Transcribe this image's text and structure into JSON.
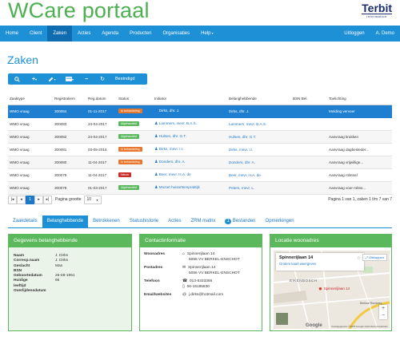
{
  "app": {
    "title": "WCare portaal",
    "brand_main": "Terbit",
    "brand_sub": "information"
  },
  "nav": {
    "items": [
      "Home",
      "Client",
      "Zaken",
      "Acties",
      "Agenda",
      "Producten",
      "Organisaties",
      "Help"
    ],
    "right": [
      "Uitloggen",
      "A. Demo"
    ]
  },
  "page": {
    "title": "Zaken"
  },
  "toolbar": {
    "reset_label": "Beeindigd"
  },
  "table": {
    "headers": [
      "Zaaktype",
      "Registratiem",
      "Reg.datum",
      "Status",
      "Initiator",
      "Belanghebbende",
      "BSN Bel.",
      "Toelichting"
    ],
    "rows": [
      {
        "type": "WMO vraag",
        "reg": "300084",
        "date": "01-11-2017",
        "status": "In behandeling",
        "status_color": "#e8772e",
        "initiator": "Dirks, dhr. J.",
        "ben": "Dirks, dhr. J.",
        "bsn": "",
        "toel": "Melding vervoer"
      },
      {
        "type": "WMO vraag",
        "reg": "300083",
        "date": "24-04-2017",
        "status": "Afgehandeld",
        "status_color": "#5cb85c",
        "initiator": "Lammers, mevr. B.A.S.",
        "ben": "Lammers, mevr. B.A.S.",
        "bsn": "",
        "toel": ""
      },
      {
        "type": "WMO vraag",
        "reg": "300082",
        "date": "24-04-2017",
        "status": "Afgehandeld",
        "status_color": "#5cb85c",
        "initiator": "Hulsen, dhr. G.T.",
        "ben": "Hulsen, dhr. G.T.",
        "bsn": "",
        "toel": "Aanvraag krukken"
      },
      {
        "type": "WMO vraag",
        "reg": "300081",
        "date": "03-05-2016",
        "status": "In behandeling",
        "status_color": "#e8772e",
        "initiator": "Dirks, mevr. I.I.",
        "ben": "Dirks, mevr. I.I.",
        "bsn": "",
        "toel": "Aanvraag dagbesteder..."
      },
      {
        "type": "WMO vraag",
        "reg": "300080",
        "date": "11-04-2017",
        "status": "In behandeling",
        "status_color": "#e8772e",
        "initiator": "Donders, dhr. A.",
        "ben": "Donders, dhr. A.",
        "bsn": "",
        "toel": "Aanvraag vrijwillige..."
      },
      {
        "type": "WMO vraag",
        "reg": "300079",
        "date": "11-04-2017",
        "status": "Nieuw",
        "status_color": "#c9302c",
        "initiator": "Beer, mevr. H.A. de",
        "ben": "Beer, mevr. H.A. de",
        "bsn": "",
        "toel": "Aanvraag rolstoel"
      },
      {
        "type": "WMO vraag",
        "reg": "300078",
        "date": "01-03-2017",
        "status": "Afgehandeld",
        "status_color": "#5cb85c",
        "initiator": "Mozart huisartsenpraktijk",
        "ben": "Peters, mevr. L.",
        "bsn": "",
        "toel": "Aanvraag voor rolsto..."
      }
    ]
  },
  "pager": {
    "current": "1",
    "size_label": "Pagina grootte",
    "size": "10",
    "info": "Pagina 1 van 1, zaken 1 t/m 7 van 7"
  },
  "tabs": [
    "Zaakdetails",
    "Belanghebbende",
    "Betrokkenen",
    "Statushistorie",
    "Acties",
    "ZRM matrix",
    "1",
    "Bestanden",
    "Opmerkingen"
  ],
  "panel1": {
    "title": "Gegevens belanghebbende",
    "rows": [
      {
        "k": "Naam",
        "v": "J. Dirks"
      },
      {
        "k": "Corresp.naam",
        "v": "J. Dirks"
      },
      {
        "k": "Geslacht",
        "v": "Man"
      },
      {
        "k": "BSN",
        "v": ""
      },
      {
        "k": "Geboortedatum",
        "v": "25-08-1951"
      },
      {
        "k": "Huidige",
        "v": "66"
      },
      {
        "k": "leeftijd",
        "v": ""
      },
      {
        "k": "Overlijdensdatum",
        "v": ""
      }
    ]
  },
  "panel2": {
    "title": "Contactinformatie",
    "woonadres_label": "Woonadres",
    "woonadres": [
      "Spinnerijlaan 14",
      "5056 VV BERKEL-ENSCHOT"
    ],
    "postadres_label": "Postadres",
    "postadres": [
      "Spinnerijlaan 14",
      "5056 VV BERKEL-ENSCHOT"
    ],
    "telefoon_label": "Telefoon",
    "telefoon": [
      "013-5333366",
      "06-19185830"
    ],
    "email_label": "Email/websites",
    "email": "j.dirks@hotmail.com"
  },
  "panel3": {
    "title": "Locatie woonadres",
    "place": "Spinnerijlaan 14",
    "larger_map": "Grotere kaart weergeven",
    "expand": "Uitklappen",
    "pin_label": "Spinnerijlaan 14",
    "area": "EIKENBOSCH",
    "credits": "Kaartgegevens ©2018 Google   Gebruiksvoorwaarden",
    "google": "Google",
    "road": "Beekse Rondweg"
  }
}
